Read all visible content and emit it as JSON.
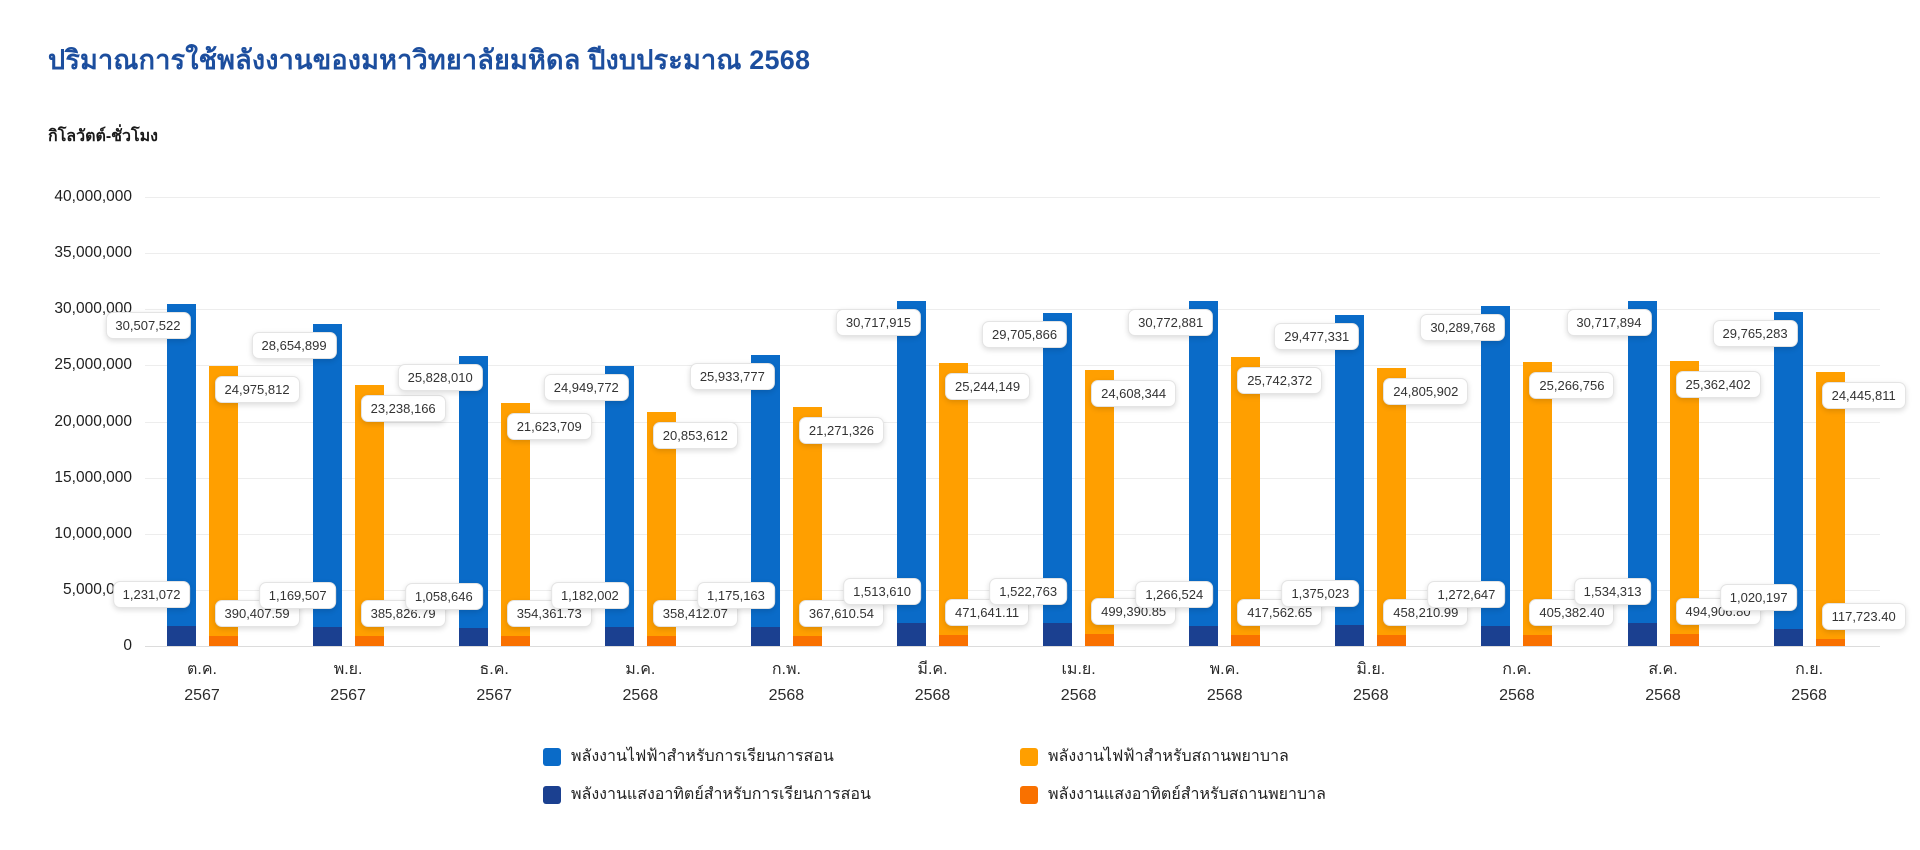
{
  "header": {
    "title": "ปริมาณการใช้พลังงานของมหาวิทยาลัยมหิดล ปีงบประมาณ 2568",
    "title_color": "#1C4E9E"
  },
  "chart_data": {
    "type": "bar",
    "title": "ปริมาณการใช้พลังงานของมหาวิทยาลัยมหิดล ปีงบประมาณ 2568",
    "xlabel": "",
    "ylabel": "กิโลวัตต์-ชั่วโมง",
    "ylim": [
      0,
      40000000
    ],
    "y_tick_step": 5000000,
    "y_tick_labels": [
      "0",
      "5,000,000",
      "10,000,000",
      "15,000,000",
      "20,000,000",
      "25,000,000",
      "30,000,000",
      "35,000,000",
      "40,000,000"
    ],
    "grid": true,
    "legend_position": "bottom",
    "categories": [
      "ต.ค.",
      "พ.ย.",
      "ธ.ค.",
      "ม.ค.",
      "ก.พ.",
      "มี.ค.",
      "เม.ย.",
      "พ.ค.",
      "มิ.ย.",
      "ก.ค.",
      "ส.ค.",
      "ก.ย."
    ],
    "category_years": [
      "2567",
      "2567",
      "2567",
      "2568",
      "2568",
      "2568",
      "2568",
      "2568",
      "2568",
      "2568",
      "2568",
      "2568"
    ],
    "series": [
      {
        "key": "electricity-teaching",
        "name": "พลังงานไฟฟ้าสำหรับการเรียนการสอน",
        "color": "#0A6BC8",
        "values": [
          30507522,
          28654899,
          25828010,
          24949772,
          25933777,
          30717915,
          29705866,
          30772881,
          29477331,
          30289768,
          30717894,
          29765283
        ],
        "labels": [
          "30,507,522",
          "28,654,899",
          "25,828,010",
          "24,949,772",
          "25,933,777",
          "30,717,915",
          "29,705,866",
          "30,772,881",
          "29,477,331",
          "30,289,768",
          "30,717,894",
          "29,765,283"
        ]
      },
      {
        "key": "electricity-hospital",
        "name": "พลังงานไฟฟ้าสำหรับสถานพยาบาล",
        "color": "#FF9F00",
        "values": [
          24975812,
          23238166,
          21623709,
          20853612,
          21271326,
          25244149,
          24608344,
          25742372,
          24805902,
          25266756,
          25362402,
          24445811
        ],
        "labels": [
          "24,975,812",
          "23,238,166",
          "21,623,709",
          "20,853,612",
          "21,271,326",
          "25,244,149",
          "24,608,344",
          "25,742,372",
          "24,805,902",
          "25,266,756",
          "25,362,402",
          "24,445,811"
        ]
      },
      {
        "key": "solar-teaching",
        "name": "พลังงานแสงอาทิตย์สำหรับการเรียนการสอน",
        "color": "#1B4090",
        "values": [
          1231072,
          1169507,
          1058646,
          1182002,
          1175163,
          1513610,
          1522763,
          1266524,
          1375023,
          1272647,
          1534313,
          1020197
        ],
        "labels": [
          "1,231,072",
          "1,169,507",
          "1,058,646",
          "1,182,002",
          "1,175,163",
          "1,513,610",
          "1,522,763",
          "1,266,524",
          "1,375,023",
          "1,272,647",
          "1,534,313",
          "1,020,197"
        ]
      },
      {
        "key": "solar-hospital",
        "name": "พลังงานแสงอาทิตย์สำหรับสถานพยาบาล",
        "color": "#F97100",
        "values": [
          390407.59,
          385826.79,
          354361.73,
          358412.07,
          367610.54,
          471641.11,
          499390.85,
          417562.65,
          458210.99,
          405382.4,
          494906.8,
          117723.4
        ],
        "labels": [
          "390,407.59",
          "385,826.79",
          "354,361.73",
          "358,412.07",
          "367,610.54",
          "471,641.11",
          "499,390.85",
          "417,562.65",
          "458,210.99",
          "405,382.40",
          "494,906.80",
          "117,723.40"
        ]
      }
    ]
  }
}
